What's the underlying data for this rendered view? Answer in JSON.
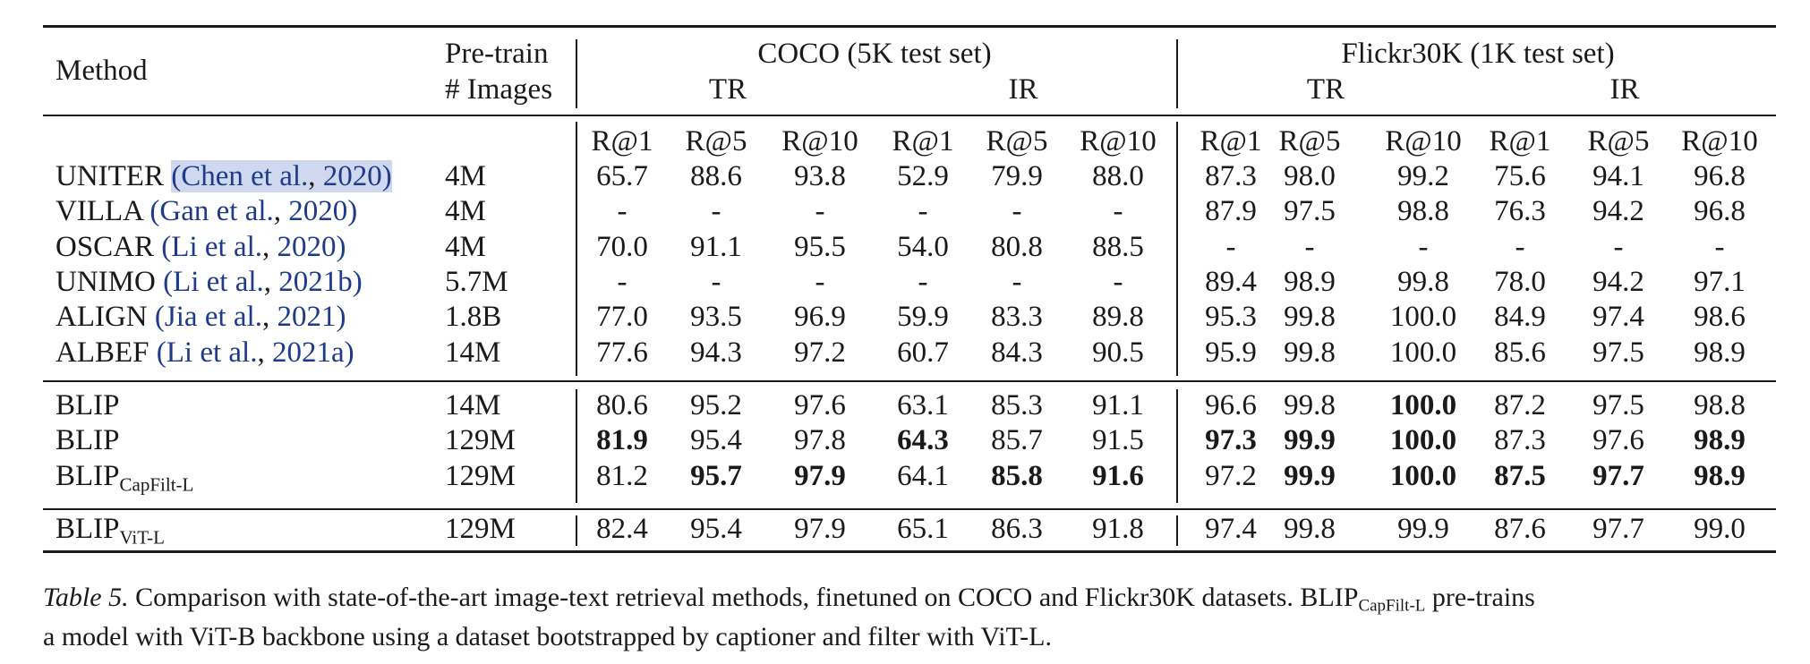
{
  "header": {
    "method": "Method",
    "pretrain_line1": "Pre-train",
    "pretrain_line2": "# Images",
    "coco": "COCO (5K test set)",
    "flickr": "Flickr30K (1K test set)",
    "tr": "TR",
    "ir": "IR",
    "metrics": [
      "R@1",
      "R@5",
      "R@10",
      "R@1",
      "R@5",
      "R@10",
      "R@1",
      "R@5",
      "R@10",
      "R@1",
      "R@5",
      "R@10"
    ]
  },
  "rows": [
    {
      "name": "UNITER",
      "cite_pre": "(",
      "cite_author": "Chen et al.",
      "cite_sep": ", ",
      "cite_year": "2020",
      "cite_post": ")",
      "images": "4M",
      "values": [
        "65.7",
        "88.6",
        "93.8",
        "52.9",
        "79.9",
        "88.0",
        "87.3",
        "98.0",
        "99.2",
        "75.6",
        "94.1",
        "96.8"
      ],
      "bold": [
        false,
        false,
        false,
        false,
        false,
        false,
        false,
        false,
        false,
        false,
        false,
        false
      ]
    },
    {
      "name": "VILLA",
      "cite_pre": "(",
      "cite_author": "Gan et al.",
      "cite_sep": ", ",
      "cite_year": "2020",
      "cite_post": ")",
      "images": "4M",
      "values": [
        "-",
        "-",
        "-",
        "-",
        "-",
        "-",
        "87.9",
        "97.5",
        "98.8",
        "76.3",
        "94.2",
        "96.8"
      ],
      "bold": [
        false,
        false,
        false,
        false,
        false,
        false,
        false,
        false,
        false,
        false,
        false,
        false
      ]
    },
    {
      "name": "OSCAR",
      "cite_pre": "(",
      "cite_author": "Li et al.",
      "cite_sep": ", ",
      "cite_year": "2020",
      "cite_post": ")",
      "images": "4M",
      "values": [
        "70.0",
        "91.1",
        "95.5",
        "54.0",
        "80.8",
        "88.5",
        "-",
        "-",
        "-",
        "-",
        "-",
        "-"
      ],
      "bold": [
        false,
        false,
        false,
        false,
        false,
        false,
        false,
        false,
        false,
        false,
        false,
        false
      ]
    },
    {
      "name": "UNIMO",
      "cite_pre": "(",
      "cite_author": "Li et al.",
      "cite_sep": ", ",
      "cite_year": "2021b",
      "cite_post": ")",
      "images": "5.7M",
      "values": [
        "-",
        "-",
        "-",
        "-",
        "-",
        "-",
        "89.4",
        "98.9",
        "99.8",
        "78.0",
        "94.2",
        "97.1"
      ],
      "bold": [
        false,
        false,
        false,
        false,
        false,
        false,
        false,
        false,
        false,
        false,
        false,
        false
      ]
    },
    {
      "name": "ALIGN",
      "cite_pre": "(",
      "cite_author": "Jia et al.",
      "cite_sep": ", ",
      "cite_year": "2021",
      "cite_post": ")",
      "images": "1.8B",
      "values": [
        "77.0",
        "93.5",
        "96.9",
        "59.9",
        "83.3",
        "89.8",
        "95.3",
        "99.8",
        "100.0",
        "84.9",
        "97.4",
        "98.6"
      ],
      "bold": [
        false,
        false,
        false,
        false,
        false,
        false,
        false,
        false,
        false,
        false,
        false,
        false
      ]
    },
    {
      "name": "ALBEF",
      "cite_pre": "(",
      "cite_author": "Li et al.",
      "cite_sep": ", ",
      "cite_year": "2021a",
      "cite_post": ")",
      "images": "14M",
      "values": [
        "77.6",
        "94.3",
        "97.2",
        "60.7",
        "84.3",
        "90.5",
        "95.9",
        "99.8",
        "100.0",
        "85.6",
        "97.5",
        "98.9"
      ],
      "bold": [
        false,
        false,
        false,
        false,
        false,
        false,
        false,
        false,
        false,
        false,
        false,
        false
      ]
    },
    {
      "name": "BLIP",
      "sub": "",
      "images": "14M",
      "values": [
        "80.6",
        "95.2",
        "97.6",
        "63.1",
        "85.3",
        "91.1",
        "96.6",
        "99.8",
        "100.0",
        "87.2",
        "97.5",
        "98.8"
      ],
      "bold": [
        false,
        false,
        false,
        false,
        false,
        false,
        false,
        false,
        true,
        false,
        false,
        false
      ]
    },
    {
      "name": "BLIP",
      "sub": "",
      "images": "129M",
      "values": [
        "81.9",
        "95.4",
        "97.8",
        "64.3",
        "85.7",
        "91.5",
        "97.3",
        "99.9",
        "100.0",
        "87.3",
        "97.6",
        "98.9"
      ],
      "bold": [
        true,
        false,
        false,
        true,
        false,
        false,
        true,
        true,
        true,
        false,
        false,
        true
      ]
    },
    {
      "name": "BLIP",
      "sub": "CapFilt-L",
      "images": "129M",
      "values": [
        "81.2",
        "95.7",
        "97.9",
        "64.1",
        "85.8",
        "91.6",
        "97.2",
        "99.9",
        "100.0",
        "87.5",
        "97.7",
        "98.9"
      ],
      "bold": [
        false,
        true,
        true,
        false,
        true,
        true,
        false,
        true,
        true,
        true,
        true,
        true
      ]
    },
    {
      "name": "BLIP",
      "sub": "ViT-L",
      "images": "129M",
      "values": [
        "82.4",
        "95.4",
        "97.9",
        "65.1",
        "86.3",
        "91.8",
        "97.4",
        "99.8",
        "99.9",
        "87.6",
        "97.7",
        "99.0"
      ],
      "bold": [
        false,
        false,
        false,
        false,
        false,
        false,
        false,
        false,
        false,
        false,
        false,
        false
      ]
    }
  ],
  "caption": {
    "label": "Table 5.",
    "text1": " Comparison with state-of-the-art image-text retrieval methods, finetuned on COCO and Flickr30K datasets. BLIP",
    "sub": "CapFilt-L",
    "text2": " pre-trains",
    "line2": "a model with ViT-B backbone using a dataset bootstrapped by captioner and filter with ViT-L."
  }
}
